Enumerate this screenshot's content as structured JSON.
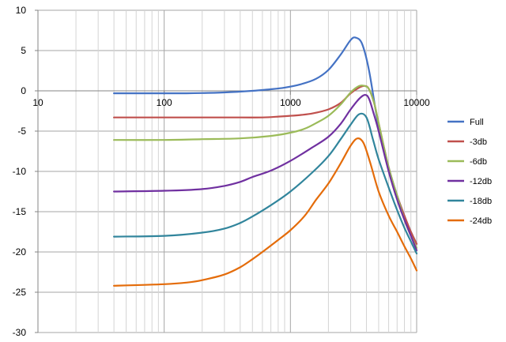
{
  "chart_data": {
    "type": "line",
    "title": "",
    "xlabel": "",
    "ylabel": "",
    "x_scale": "log",
    "xlim": [
      10,
      10000
    ],
    "ylim": [
      -30,
      10
    ],
    "x_ticks": [
      "10",
      "100",
      "1000",
      "10000"
    ],
    "y_ticks": [
      "10",
      "5",
      "0",
      "-5",
      "-10",
      "-15",
      "-20",
      "-25",
      "-30"
    ],
    "grid": true,
    "legend_position": "right",
    "series": [
      {
        "name": "Full",
        "color": "#4472c4",
        "x": [
          40,
          80,
          150,
          300,
          500,
          700,
          900,
          1200,
          1600,
          2000,
          2500,
          3000,
          3300,
          3700,
          4200,
          5000,
          6000,
          7000,
          8000,
          9000,
          10000
        ],
        "y": [
          -0.3,
          -0.3,
          -0.3,
          -0.2,
          0,
          0.2,
          0.4,
          0.8,
          1.5,
          2.6,
          4.5,
          6.3,
          6.6,
          5.8,
          2.5,
          -4.5,
          -9.5,
          -13,
          -15.5,
          -17.5,
          -19
        ]
      },
      {
        "name": "-3db",
        "color": "#c0504d",
        "x": [
          40,
          100,
          200,
          400,
          600,
          800,
          1000,
          1200,
          1500,
          2000,
          2500,
          3000,
          3500,
          3900,
          4200,
          4600,
          5000,
          6000,
          7000,
          8000,
          9000,
          10000
        ],
        "y": [
          -3.3,
          -3.3,
          -3.3,
          -3.3,
          -3.3,
          -3.2,
          -3.1,
          -3,
          -2.8,
          -2.3,
          -1.5,
          -0.3,
          0.4,
          0.6,
          0.2,
          -1.5,
          -4,
          -9.5,
          -13,
          -15.5,
          -17.5,
          -19
        ]
      },
      {
        "name": "-6db",
        "color": "#9bbb59",
        "x": [
          40,
          100,
          200,
          400,
          700,
          1000,
          1300,
          1600,
          2000,
          2500,
          3000,
          3500,
          3900,
          4200,
          4600,
          5000,
          6000,
          7000,
          8000,
          9000,
          10000
        ],
        "y": [
          -6.1,
          -6.1,
          -6.0,
          -5.9,
          -5.6,
          -5.2,
          -4.7,
          -4.0,
          -3.1,
          -1.7,
          -0.2,
          0.6,
          0.6,
          0.2,
          -1.5,
          -4,
          -9.5,
          -13,
          -16,
          -18,
          -19.5
        ]
      },
      {
        "name": "-12db",
        "color": "#7030a0",
        "x": [
          40,
          100,
          200,
          300,
          400,
          500,
          700,
          1000,
          1500,
          2000,
          2500,
          3000,
          3500,
          3900,
          4200,
          4600,
          5000,
          6000,
          7000,
          8000,
          9000,
          10000
        ],
        "y": [
          -12.5,
          -12.4,
          -12.2,
          -11.8,
          -11.3,
          -10.7,
          -9.9,
          -8.7,
          -7.0,
          -5.7,
          -4.1,
          -2.3,
          -1.0,
          -0.5,
          -1.0,
          -3,
          -5,
          -10,
          -13.5,
          -16,
          -18,
          -19.8
        ]
      },
      {
        "name": "-18db",
        "color": "#31859c",
        "x": [
          40,
          100,
          200,
          300,
          400,
          500,
          700,
          1000,
          1500,
          2000,
          2500,
          3000,
          3500,
          4000,
          4500,
          5000,
          6000,
          7000,
          8000,
          9000,
          10000
        ],
        "y": [
          -18.1,
          -18.0,
          -17.6,
          -17.1,
          -16.4,
          -15.6,
          -14.2,
          -12.5,
          -10.1,
          -8.1,
          -6.0,
          -4.2,
          -2.9,
          -3.3,
          -6.0,
          -8.5,
          -12,
          -14.8,
          -17,
          -18.7,
          -20.2
        ]
      },
      {
        "name": "-24db",
        "color": "#e46c0a",
        "x": [
          40,
          100,
          150,
          200,
          300,
          400,
          500,
          600,
          800,
          1000,
          1300,
          1600,
          2000,
          2500,
          3000,
          3400,
          3800,
          4300,
          5000,
          6000,
          7000,
          8000,
          9000,
          10000
        ],
        "y": [
          -24.2,
          -24.0,
          -23.8,
          -23.5,
          -22.8,
          -21.9,
          -20.9,
          -20.0,
          -18.5,
          -17.3,
          -15.5,
          -13.5,
          -11.5,
          -9.0,
          -6.8,
          -5.9,
          -6.5,
          -9.0,
          -12.5,
          -15.5,
          -17.5,
          -19.3,
          -20.8,
          -22.3
        ]
      }
    ]
  }
}
